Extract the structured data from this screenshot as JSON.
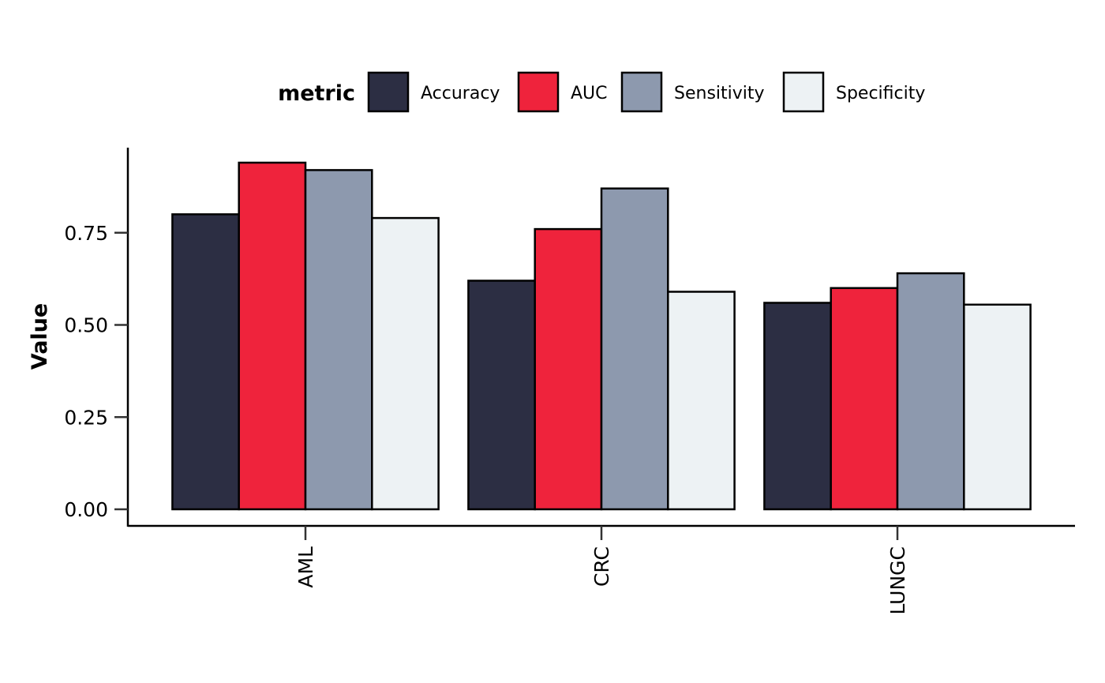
{
  "chart_data": {
    "type": "bar",
    "title": "",
    "xlabel": "",
    "ylabel": "Value",
    "legend_title": "metric",
    "legend_position": "top",
    "grid": false,
    "categories": [
      "AML",
      "CRC",
      "LUNGC"
    ],
    "yticks": [
      "0.00",
      "0.25",
      "0.50",
      "0.75"
    ],
    "ylim": [
      -0.045,
      0.985
    ],
    "series": [
      {
        "name": "Accuracy",
        "color": "#2C2E43",
        "values": [
          0.8,
          0.62,
          0.56
        ]
      },
      {
        "name": "AUC",
        "color": "#EF233C",
        "values": [
          0.94,
          0.76,
          0.6
        ]
      },
      {
        "name": "Sensitivity",
        "color": "#8D99AE",
        "values": [
          0.92,
          0.87,
          0.64
        ]
      },
      {
        "name": "Specificity",
        "color": "#EDF2F4",
        "values": [
          0.79,
          0.59,
          0.555
        ]
      }
    ]
  }
}
